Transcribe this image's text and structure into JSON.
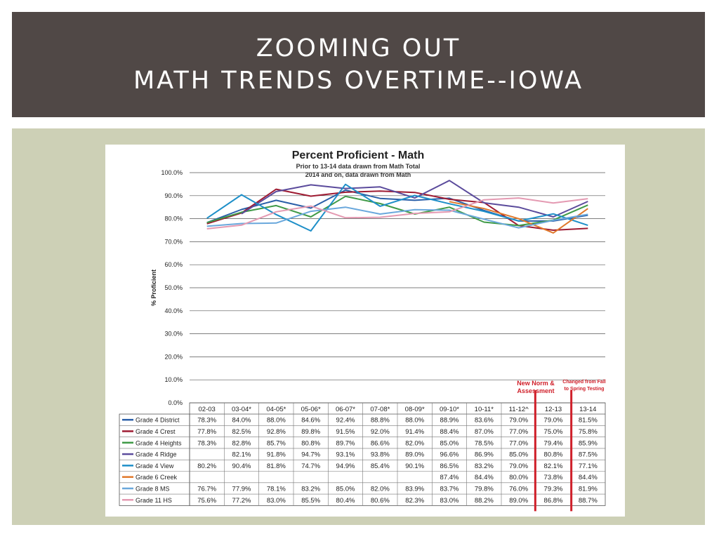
{
  "slide": {
    "title_line1": "ZOOMING OUT",
    "title_line2": "MATH TRENDS OVERTIME--IOWA",
    "header_color": "#504846",
    "panel_color": "#cdd0b6"
  },
  "chart_data": {
    "type": "line",
    "title": "Percent Proficient - Math",
    "subtitle": [
      "Prior to 13-14 data drawn from Math Total",
      "2014 and on, data drawn from Math"
    ],
    "xlabel": "",
    "ylabel": "% Proficient",
    "ylim": [
      0,
      100
    ],
    "yticks": [
      "0.0%",
      "10.0%",
      "20.0%",
      "30.0%",
      "40.0%",
      "50.0%",
      "60.0%",
      "70.0%",
      "80.0%",
      "90.0%",
      "100.0%"
    ],
    "grid": true,
    "legend": "table-below",
    "categories": [
      "02-03",
      "03-04*",
      "04-05*",
      "05-06*",
      "06-07*",
      "07-08*",
      "08-09*",
      "09-10*",
      "10-11*",
      "11-12^",
      "12-13",
      "13-14"
    ],
    "series": [
      {
        "name": "Grade 4 District",
        "color": "#2a5fa8",
        "values": [
          78.3,
          84.0,
          88.0,
          84.6,
          92.4,
          88.8,
          88.0,
          88.9,
          83.6,
          79.0,
          79.0,
          81.5
        ]
      },
      {
        "name": "Grade 4 Crest",
        "color": "#9e1b32",
        "values": [
          77.8,
          82.5,
          92.8,
          89.8,
          91.5,
          92.0,
          91.4,
          88.4,
          87.0,
          77.0,
          75.0,
          75.8
        ]
      },
      {
        "name": "Grade 4 Heights",
        "color": "#3f9a47",
        "values": [
          78.3,
          82.8,
          85.7,
          80.8,
          89.7,
          86.6,
          82.0,
          85.0,
          78.5,
          77.0,
          79.4,
          85.9
        ]
      },
      {
        "name": "Grade 4 Ridge",
        "color": "#5b4b9c",
        "values": [
          null,
          82.1,
          91.8,
          94.7,
          93.1,
          93.8,
          89.0,
          96.6,
          86.9,
          85.0,
          80.8,
          87.5
        ]
      },
      {
        "name": "Grade 4 View",
        "color": "#1e8fc8",
        "values": [
          80.2,
          90.4,
          81.8,
          74.7,
          94.9,
          85.4,
          90.1,
          86.5,
          83.2,
          79.0,
          82.1,
          77.1
        ]
      },
      {
        "name": "Grade 6 Creek",
        "color": "#e0782a",
        "values": [
          null,
          null,
          null,
          null,
          null,
          null,
          null,
          87.4,
          84.4,
          80.0,
          73.8,
          84.4
        ]
      },
      {
        "name": "Grade 8 MS",
        "color": "#6aa8dc",
        "values": [
          76.7,
          77.9,
          78.1,
          83.2,
          85.0,
          82.0,
          83.9,
          83.7,
          79.8,
          76.0,
          79.3,
          81.9
        ]
      },
      {
        "name": "Grade 11 HS",
        "color": "#e49ab2",
        "values": [
          75.6,
          77.2,
          83.0,
          85.5,
          80.4,
          80.6,
          82.3,
          83.0,
          88.2,
          89.0,
          86.8,
          88.7
        ]
      }
    ],
    "table_values": [
      [
        "78.3%",
        "84.0%",
        "88.0%",
        "84.6%",
        "92.4%",
        "88.8%",
        "88.0%",
        "88.9%",
        "83.6%",
        "79.0%",
        "79.0%",
        "81.5%"
      ],
      [
        "77.8%",
        "82.5%",
        "92.8%",
        "89.8%",
        "91.5%",
        "92.0%",
        "91.4%",
        "88.4%",
        "87.0%",
        "77.0%",
        "75.0%",
        "75.8%"
      ],
      [
        "78.3%",
        "82.8%",
        "85.7%",
        "80.8%",
        "89.7%",
        "86.6%",
        "82.0%",
        "85.0%",
        "78.5%",
        "77.0%",
        "79.4%",
        "85.9%"
      ],
      [
        "",
        "82.1%",
        "91.8%",
        "94.7%",
        "93.1%",
        "93.8%",
        "89.0%",
        "96.6%",
        "86.9%",
        "85.0%",
        "80.8%",
        "87.5%"
      ],
      [
        "80.2%",
        "90.4%",
        "81.8%",
        "74.7%",
        "94.9%",
        "85.4%",
        "90.1%",
        "86.5%",
        "83.2%",
        "79.0%",
        "82.1%",
        "77.1%"
      ],
      [
        "",
        "",
        "",
        "",
        "",
        "",
        "",
        "87.4%",
        "84.4%",
        "80.0%",
        "73.8%",
        "84.4%"
      ],
      [
        "76.7%",
        "77.9%",
        "78.1%",
        "83.2%",
        "85.0%",
        "82.0%",
        "83.9%",
        "83.7%",
        "79.8%",
        "76.0%",
        "79.3%",
        "81.9%"
      ],
      [
        "75.6%",
        "77.2%",
        "83.0%",
        "85.5%",
        "80.4%",
        "80.6%",
        "82.3%",
        "83.0%",
        "88.2%",
        "89.0%",
        "86.8%",
        "88.7%"
      ]
    ],
    "annotations": [
      {
        "lines": [
          "New Norm &",
          "Assessment"
        ],
        "color": "#d0202a"
      },
      {
        "lines": [
          "Changed from Fall",
          "to Spring Testing"
        ],
        "color": "#d0202a"
      }
    ]
  }
}
